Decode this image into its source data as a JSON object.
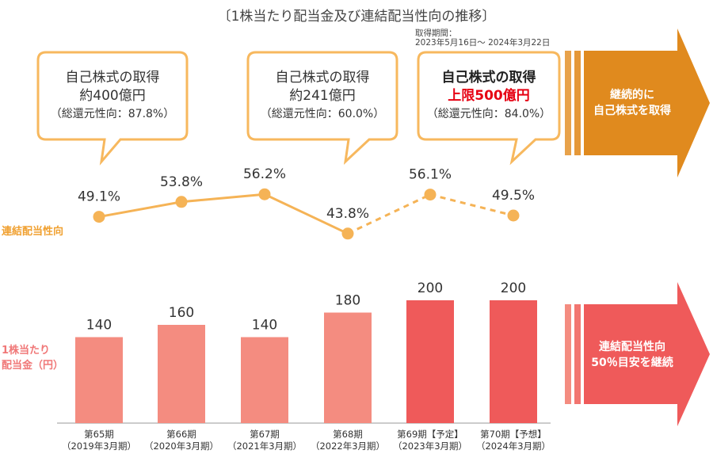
{
  "title": "〔1株当たり配当金及び連結配当性向の推移〕",
  "acquisition_period": {
    "label": "取得期間：",
    "range": "2023年5月16日～ 2024年3月22日"
  },
  "bubbles": [
    {
      "line1": "自己株式の取得",
      "line2": "約400億円",
      "line3": "（総還元性向：87.8%）"
    },
    {
      "line1": "自己株式の取得",
      "line2": "約241億円",
      "line3": "（総還元性向：60.0%）"
    },
    {
      "line1": "自己株式の取得",
      "line2": "上限500億円",
      "line3": "（総還元性向：84.0%）"
    }
  ],
  "arrows": {
    "top": {
      "line1": "継続的に",
      "line2": "自己株式を取得"
    },
    "bottom": {
      "line1": "連結配当性向",
      "line2": "50％目安を継続"
    }
  },
  "labels": {
    "payout": "連結配当性向",
    "dps_line1": "1株当たり",
    "dps_line2": "配当金（円）"
  },
  "colors": {
    "bar_actual": "#f48c80",
    "bar_forecast": "#ef5a5a",
    "line": "#f5b356",
    "bubble_border": "#f7b85e",
    "arrow_top": "#e08a1e",
    "arrow_bottom": "#ef5a5a",
    "payout_label": "#f0a030",
    "dps_label": "#f07878"
  },
  "chart_data": [
    {
      "type": "line",
      "categories": [
        "第65期",
        "第66期",
        "第67期",
        "第68期",
        "第69期【予定】",
        "第70期【予想】"
      ],
      "series": [
        {
          "name": "連結配当性向",
          "values": [
            49.1,
            53.8,
            56.2,
            43.8,
            56.1,
            49.5
          ]
        }
      ],
      "value_labels": [
        "49.1%",
        "53.8%",
        "56.2%",
        "43.8%",
        "56.1%",
        "49.5%"
      ],
      "dashed_from_index": 3
    },
    {
      "type": "bar",
      "categories": [
        "第65期",
        "第66期",
        "第67期",
        "第68期",
        "第69期【予定】",
        "第70期【予想】"
      ],
      "subcategories": [
        "（2019年3月期）",
        "（2020年3月期）",
        "（2021年3月期）",
        "（2022年3月期）",
        "（2023年3月期）",
        "（2024年3月期）"
      ],
      "series": [
        {
          "name": "1株当たり配当金（円）",
          "values": [
            140,
            160,
            140,
            180,
            200,
            200
          ]
        }
      ],
      "highlight_from_index": 4,
      "ylim": [
        0,
        200
      ]
    }
  ]
}
